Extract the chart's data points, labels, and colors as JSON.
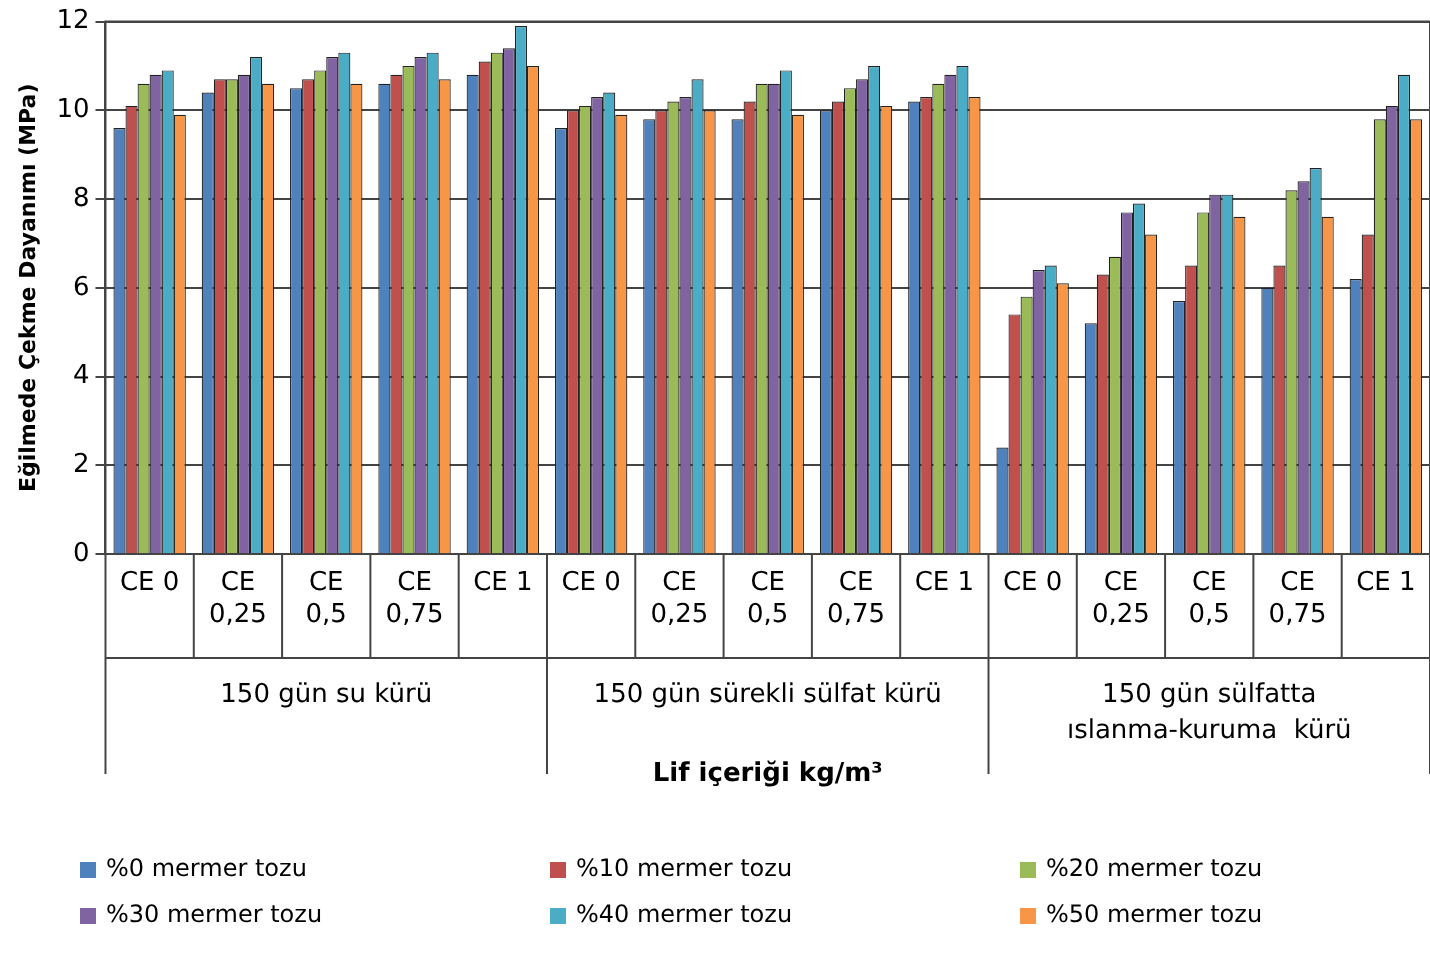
{
  "chart_data": {
    "type": "bar",
    "ylabel": "Eğilmede Çekme Dayanımı (MPa)",
    "xlabel": "Lif içeriği kg/m³",
    "categories": [
      "CE 0",
      "CE 0,25",
      "CE 0,5",
      "CE 0,75",
      "CE 1",
      "CE 0",
      "CE 0,25",
      "CE 0,5",
      "CE 0,75",
      "CE 1",
      "CE 0",
      "CE 0,25",
      "CE 0,5",
      "CE 0,75",
      "CE 1"
    ],
    "annotations": [
      "150 gün su kürü",
      "150 gün sürekli sülfat kürü",
      "150 gün sülfatta ıslanma-kuruma  kürü"
    ],
    "series": [
      {
        "name": "%0 mermer tozu",
        "color": "#4f81bd",
        "values": [
          9.6,
          10.4,
          10.5,
          10.6,
          10.8,
          9.6,
          9.8,
          9.8,
          10.0,
          10.2,
          2.4,
          5.2,
          5.7,
          6.0,
          6.2
        ]
      },
      {
        "name": "%10 mermer tozu",
        "color": "#c0504d",
        "values": [
          10.1,
          10.7,
          10.7,
          10.8,
          11.1,
          10.0,
          10.0,
          10.2,
          10.2,
          10.3,
          5.4,
          6.3,
          6.5,
          6.5,
          7.2
        ]
      },
      {
        "name": "%20 mermer tozu",
        "color": "#9bbb59",
        "values": [
          10.6,
          10.7,
          10.9,
          11.0,
          11.3,
          10.1,
          10.2,
          10.6,
          10.5,
          10.6,
          5.8,
          6.7,
          7.7,
          8.2,
          9.8
        ]
      },
      {
        "name": "%30 mermer tozu",
        "color": "#8064a2",
        "values": [
          10.8,
          10.8,
          11.2,
          11.2,
          11.4,
          10.3,
          10.3,
          10.6,
          10.7,
          10.8,
          6.4,
          7.7,
          8.1,
          8.4,
          10.1
        ]
      },
      {
        "name": "%40 mermer tozu",
        "color": "#4bacc6",
        "values": [
          10.9,
          11.2,
          11.3,
          11.3,
          11.9,
          10.4,
          10.7,
          10.9,
          11.0,
          11.0,
          6.5,
          7.9,
          8.1,
          8.7,
          10.8
        ]
      },
      {
        "name": "%50 mermer tozu",
        "color": "#f79646",
        "values": [
          9.9,
          10.6,
          10.6,
          10.7,
          11.0,
          9.9,
          10.0,
          9.9,
          10.1,
          10.3,
          6.1,
          7.2,
          7.6,
          7.6,
          9.8
        ]
      }
    ],
    "ylim": [
      0,
      12
    ],
    "yticks": [
      0,
      2,
      4,
      6,
      8,
      10,
      12
    ],
    "grid": "y",
    "legend": "bottom"
  }
}
